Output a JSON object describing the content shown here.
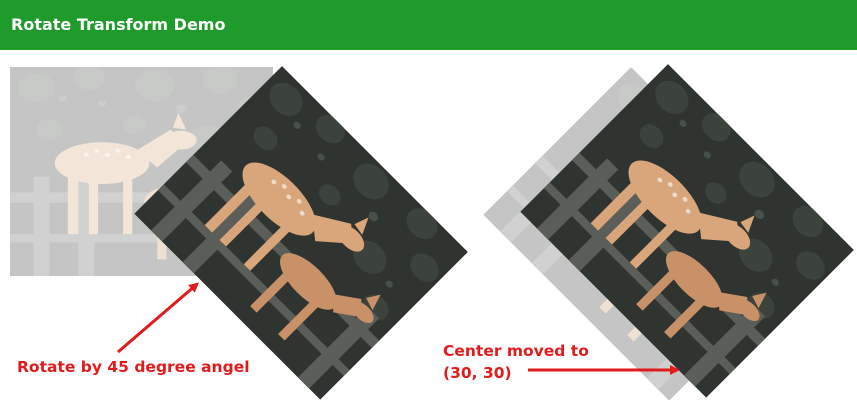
{
  "header": {
    "title": "Rotate Transform Demo"
  },
  "annotations": {
    "rotate_note": "Rotate by 45 degree angel",
    "center_note_line1": "Center moved to",
    "center_note_line2": "(30, 30)"
  },
  "colors": {
    "header_bg": "#1f9b2c",
    "annotation": "#e11b1b",
    "photo_dark": "#2f3430",
    "deer": "#d9a57a"
  },
  "images": [
    {
      "name": "original-deer-image",
      "state": "faded"
    },
    {
      "name": "rotated-deer-image",
      "rotation_degrees": 45
    },
    {
      "name": "rotated-deer-image-moved-center",
      "rotation_degrees": 45
    }
  ]
}
